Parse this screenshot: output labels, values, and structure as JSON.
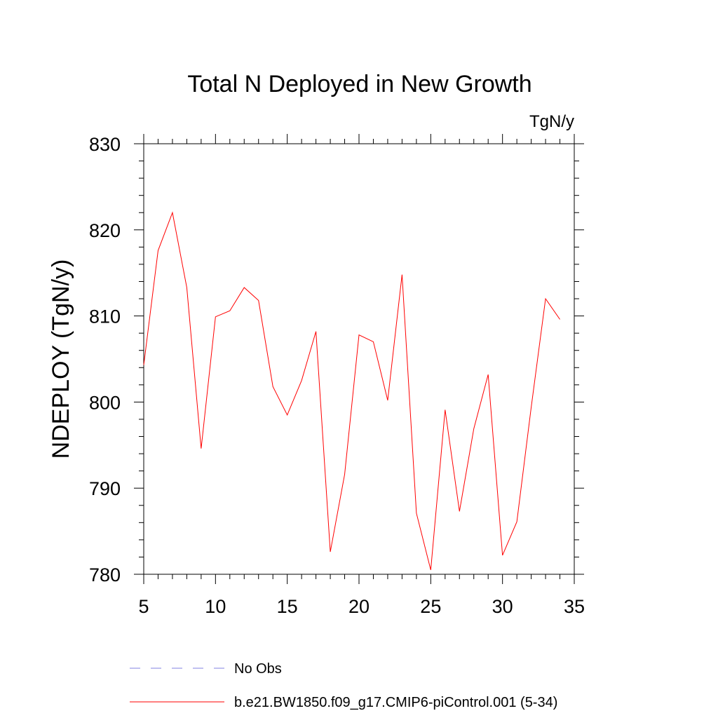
{
  "chart_data": {
    "type": "line",
    "title": "Total N Deployed in New Growth",
    "units": "TgN/y",
    "ylabel": "NDEPLOY  (TgN/y)",
    "xlabel": "",
    "xlim": [
      5,
      35
    ],
    "ylim": [
      780,
      830
    ],
    "xticks": [
      5,
      10,
      15,
      20,
      25,
      30,
      35
    ],
    "yticks": [
      780,
      790,
      800,
      810,
      820,
      830
    ],
    "grid": false,
    "legend_position": "bottom",
    "series": [
      {
        "name": "No Obs",
        "style": "dashed",
        "color": "#8080e0",
        "x": [],
        "y": []
      },
      {
        "name": "b.e21.BW1850.f09_g17.CMIP6-piControl.001 (5-34)",
        "style": "solid",
        "color": "#ff0000",
        "x": [
          5,
          6,
          7,
          8,
          9,
          10,
          11,
          12,
          13,
          14,
          15,
          16,
          17,
          18,
          19,
          20,
          21,
          22,
          23,
          24,
          25,
          26,
          27,
          28,
          29,
          30,
          31,
          32,
          33,
          34
        ],
        "y": [
          804.3,
          817.6,
          822.0,
          813.3,
          794.6,
          809.9,
          810.6,
          813.3,
          811.8,
          801.8,
          798.5,
          802.5,
          808.2,
          782.6,
          791.6,
          807.8,
          807.0,
          800.2,
          814.8,
          787.1,
          780.5,
          799.1,
          787.3,
          796.9,
          803.2,
          782.2,
          786.1,
          799.4,
          812.0,
          809.6
        ]
      }
    ]
  }
}
